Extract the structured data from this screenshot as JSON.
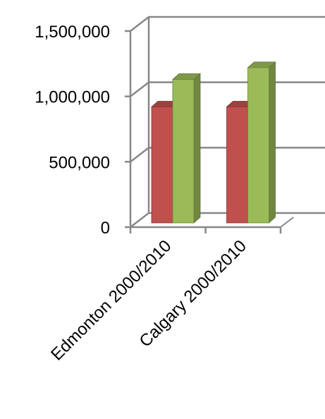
{
  "chart_data": {
    "type": "bar",
    "style": "3d-clustered-column",
    "categories": [
      "Edmonton 2000/2010",
      "Calgary 2000/2010"
    ],
    "series": [
      {
        "values": [
          920000,
          920000
        ],
        "color": "#C0504D"
      },
      {
        "values": [
          1130000,
          1220000
        ],
        "color": "#9BBB59"
      }
    ],
    "ylim": [
      0,
      1500000
    ],
    "yticks": [
      {
        "value": 0,
        "label": "0"
      },
      {
        "value": 500000,
        "label": "500,000"
      },
      {
        "value": 1000000,
        "label": "1,000,000"
      },
      {
        "value": 1500000,
        "label": "1,500,000"
      }
    ],
    "grid": true,
    "legend": "none"
  }
}
